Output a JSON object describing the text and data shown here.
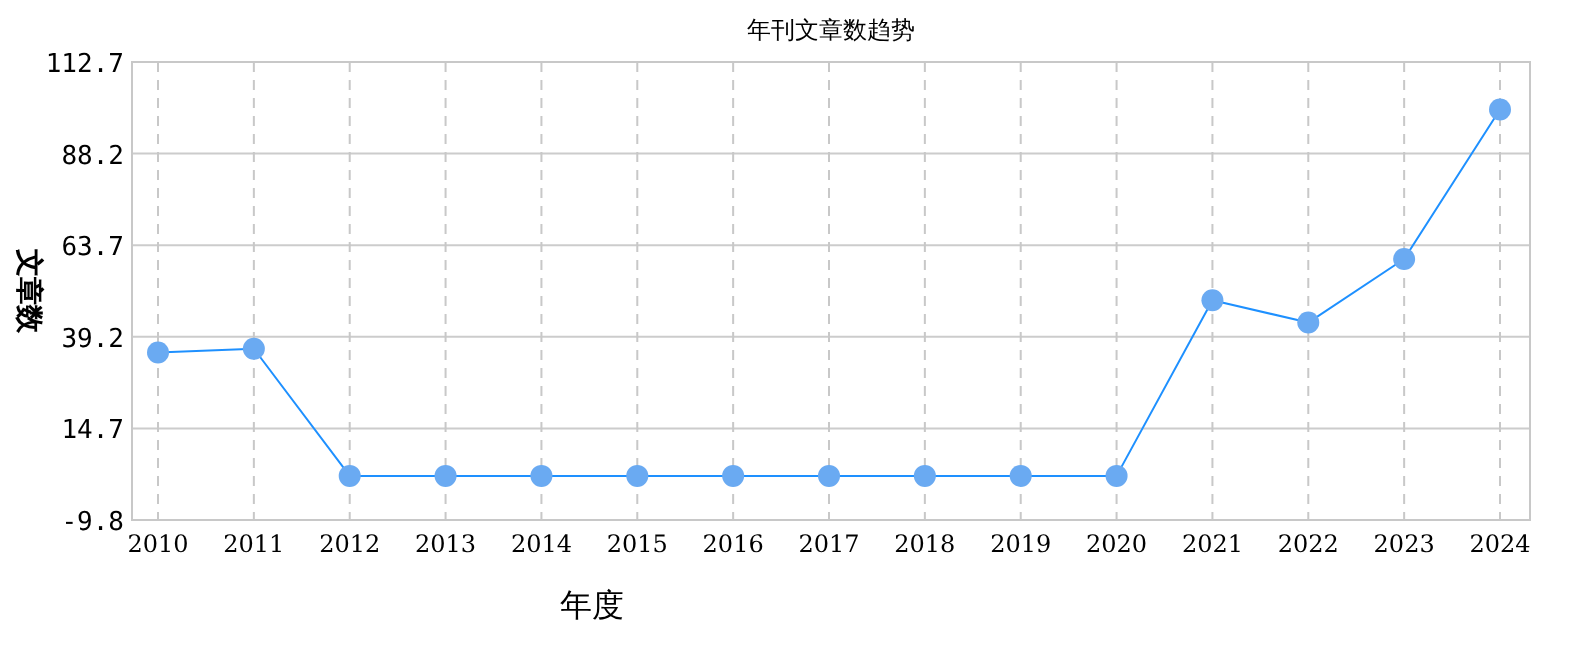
{
  "chart_data": {
    "type": "line",
    "title": "年刊文章数趋势",
    "xlabel": "年度",
    "ylabel": "文章数",
    "categories": [
      "2010",
      "2011",
      "2012",
      "2013",
      "2014",
      "2015",
      "2016",
      "2017",
      "2018",
      "2019",
      "2020",
      "2021",
      "2022",
      "2023",
      "2024"
    ],
    "series": [
      {
        "color": "#1e90ff",
        "values": [
          35,
          36,
          2,
          2,
          2,
          2,
          2,
          2,
          2,
          2,
          2,
          49,
          43,
          60,
          100
        ]
      }
    ],
    "ylim": [
      -9.8,
      112.7
    ],
    "yticks": [
      -9.8,
      14.7,
      39.2,
      63.7,
      88.2,
      112.7
    ],
    "grid": true,
    "marker": "circle",
    "line_style": "solid"
  }
}
